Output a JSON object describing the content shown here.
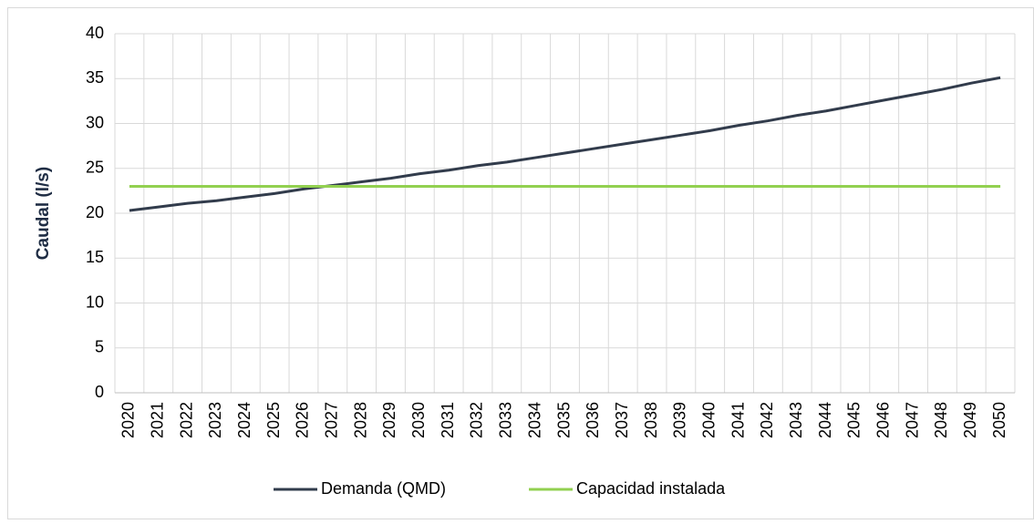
{
  "chart_data": {
    "type": "line",
    "y_label": "Caudal (l/s)",
    "categories": [
      "2020",
      "2021",
      "2022",
      "2023",
      "2024",
      "2025",
      "2026",
      "2027",
      "2028",
      "2029",
      "2030",
      "2031",
      "2032",
      "2033",
      "2034",
      "2035",
      "2036",
      "2037",
      "2038",
      "2039",
      "2040",
      "2041",
      "2042",
      "2043",
      "2044",
      "2045",
      "2046",
      "2047",
      "2048",
      "2049",
      "2050"
    ],
    "series": [
      {
        "name": "Demanda (QMD)",
        "color": "#323c4c",
        "values": [
          20.3,
          20.7,
          21.1,
          21.4,
          21.8,
          22.2,
          22.7,
          23.1,
          23.5,
          23.9,
          24.4,
          24.8,
          25.3,
          25.7,
          26.2,
          26.7,
          27.2,
          27.7,
          28.2,
          28.7,
          29.2,
          29.8,
          30.3,
          30.9,
          31.4,
          32.0,
          32.6,
          33.2,
          33.8,
          34.5,
          35.1
        ]
      },
      {
        "name": "Capacidad instalada",
        "color": "#92d050",
        "values": [
          23,
          23,
          23,
          23,
          23,
          23,
          23,
          23,
          23,
          23,
          23,
          23,
          23,
          23,
          23,
          23,
          23,
          23,
          23,
          23,
          23,
          23,
          23,
          23,
          23,
          23,
          23,
          23,
          23,
          23,
          23
        ]
      }
    ],
    "ylim": [
      0,
      40
    ],
    "yticks": [
      0,
      5,
      10,
      15,
      20,
      25,
      30,
      35,
      40
    ],
    "grid": true,
    "legend": "bottom"
  }
}
